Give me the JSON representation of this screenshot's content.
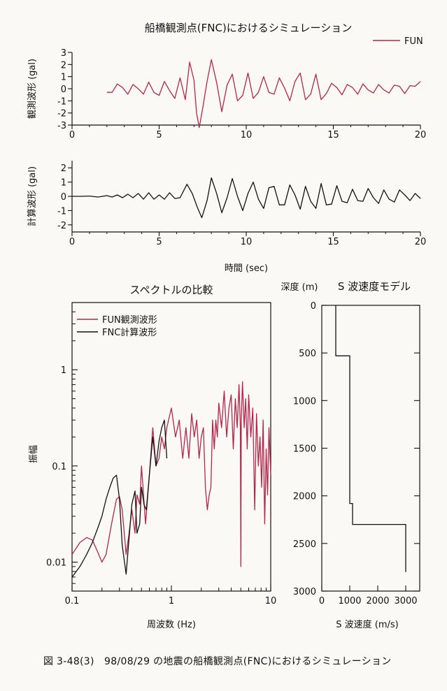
{
  "figure_title": "船橋観測点(FNC)におけるシミュレーション",
  "caption": "図 3-48(3)　98/08/29 の地震の船橋観測点(FNC)におけるシミュレーション",
  "colors": {
    "observed": "#b5264a",
    "computed": "#111111"
  },
  "chart_data": [
    {
      "type": "line",
      "title": "船橋観測点(FNC)におけるシミュレーション",
      "xlabel": "",
      "ylabel": "観測波形 (gal)",
      "xlim": [
        0,
        20
      ],
      "ylim": [
        -3,
        3
      ],
      "xticks": [
        "0",
        "5",
        "10",
        "15",
        "20"
      ],
      "yticks": [
        "3",
        "2",
        "1",
        "0",
        "-1",
        "-2",
        "-3"
      ],
      "legend": [
        "FUN"
      ],
      "legend_position": "top-right",
      "series": [
        {
          "name": "FUN",
          "color": "#b5264a",
          "x": [
            2.0,
            2.3,
            2.6,
            2.9,
            3.2,
            3.5,
            3.8,
            4.1,
            4.4,
            4.7,
            5.0,
            5.3,
            5.6,
            5.9,
            6.2,
            6.5,
            6.75,
            7.0,
            7.15,
            7.3,
            7.5,
            7.75,
            8.0,
            8.3,
            8.6,
            8.9,
            9.2,
            9.5,
            9.8,
            10.1,
            10.4,
            10.7,
            11.0,
            11.3,
            11.6,
            11.9,
            12.2,
            12.5,
            12.8,
            13.1,
            13.4,
            13.7,
            14.0,
            14.3,
            14.6,
            14.9,
            15.2,
            15.5,
            15.8,
            16.1,
            16.4,
            16.7,
            17.0,
            17.3,
            17.6,
            17.9,
            18.2,
            18.5,
            18.8,
            19.1,
            19.4,
            19.7,
            20.0
          ],
          "y": [
            -0.3,
            -0.3,
            0.4,
            0.1,
            -0.45,
            0.35,
            0.0,
            -0.45,
            0.55,
            -0.3,
            -0.55,
            0.6,
            -0.15,
            -0.8,
            0.9,
            -0.9,
            2.2,
            0.7,
            -2.0,
            -3.2,
            -1.6,
            0.6,
            2.4,
            0.5,
            -1.9,
            0.3,
            1.2,
            -1.0,
            -0.55,
            1.3,
            -0.8,
            -0.3,
            1.0,
            -0.3,
            -0.45,
            0.9,
            0.05,
            -1.0,
            0.6,
            1.3,
            -0.9,
            -0.45,
            1.2,
            -0.9,
            -0.4,
            0.45,
            0.1,
            -0.5,
            0.35,
            0.1,
            -0.45,
            0.4,
            -0.1,
            -0.35,
            0.35,
            -0.1,
            -0.35,
            0.3,
            0.2,
            -0.4,
            0.25,
            0.2,
            0.6
          ]
        }
      ]
    },
    {
      "type": "line",
      "xlabel": "時間 (sec)",
      "ylabel": "計算波形 (gal)",
      "xlim": [
        0,
        20
      ],
      "ylim": [
        -2.5,
        2.5
      ],
      "xticks": [
        "0",
        "5",
        "10",
        "15",
        "20"
      ],
      "yticks": [
        "2",
        "1",
        "0",
        "-1",
        "-2"
      ],
      "series": [
        {
          "color": "#111111",
          "x": [
            0.0,
            0.5,
            1.0,
            1.5,
            2.0,
            2.3,
            2.6,
            2.9,
            3.2,
            3.5,
            3.8,
            4.1,
            4.4,
            4.7,
            5.0,
            5.3,
            5.6,
            5.9,
            6.2,
            6.6,
            6.9,
            7.2,
            7.45,
            7.75,
            8.0,
            8.3,
            8.6,
            8.9,
            9.2,
            9.5,
            9.8,
            10.1,
            10.4,
            10.7,
            11.0,
            11.3,
            11.6,
            11.9,
            12.2,
            12.5,
            12.8,
            13.1,
            13.4,
            13.7,
            14.0,
            14.3,
            14.6,
            14.9,
            15.2,
            15.5,
            15.8,
            16.1,
            16.4,
            16.7,
            17.0,
            17.3,
            17.6,
            17.9,
            18.2,
            18.5,
            18.8,
            19.1,
            19.4,
            19.7,
            20.0
          ],
          "y": [
            0.0,
            0.0,
            0.02,
            -0.05,
            0.05,
            -0.05,
            0.1,
            -0.1,
            0.15,
            -0.1,
            0.2,
            -0.2,
            0.25,
            -0.2,
            0.1,
            -0.2,
            0.25,
            -0.15,
            -0.1,
            0.85,
            0.2,
            -0.8,
            -1.5,
            -0.3,
            1.3,
            0.2,
            -1.15,
            -0.1,
            1.25,
            0.0,
            -1.0,
            0.2,
            1.0,
            -0.2,
            -0.85,
            0.6,
            0.7,
            -0.6,
            -0.6,
            0.8,
            0.1,
            -0.9,
            0.7,
            -0.35,
            -0.85,
            0.9,
            -0.6,
            -0.55,
            0.75,
            -0.35,
            -0.45,
            0.5,
            -0.3,
            -0.35,
            0.55,
            -0.1,
            -0.5,
            0.45,
            -0.2,
            -0.4,
            0.45,
            0.1,
            -0.3,
            0.2,
            -0.15
          ]
        }
      ]
    },
    {
      "type": "line",
      "title": "スペクトルの比較",
      "xlabel": "周波数 (Hz)",
      "ylabel": "振幅",
      "xscale": "log",
      "yscale": "log",
      "xlim": [
        0.1,
        10
      ],
      "ylim": [
        0.005,
        5
      ],
      "xticks": [
        "0.1",
        "1",
        "10"
      ],
      "yticks": [
        "1",
        "0.1",
        "0.01"
      ],
      "legend": [
        "FUN観測波形",
        "FNC計算波形"
      ],
      "legend_position": "top-left",
      "series": [
        {
          "name": "FUN観測波形",
          "color": "#b5264a",
          "x": [
            0.1,
            0.12,
            0.14,
            0.16,
            0.18,
            0.2,
            0.22,
            0.25,
            0.28,
            0.3,
            0.32,
            0.35,
            0.37,
            0.4,
            0.43,
            0.45,
            0.48,
            0.5,
            0.55,
            0.6,
            0.65,
            0.7,
            0.75,
            0.8,
            0.85,
            0.9,
            1.0,
            1.1,
            1.2,
            1.3,
            1.4,
            1.5,
            1.6,
            1.7,
            1.8,
            1.9,
            2.0,
            2.1,
            2.2,
            2.3,
            2.4,
            2.5,
            2.6,
            2.7,
            2.8,
            2.9,
            3.0,
            3.2,
            3.4,
            3.6,
            3.8,
            4.0,
            4.2,
            4.4,
            4.6,
            4.8,
            4.95,
            5.0,
            5.05,
            5.2,
            5.4,
            5.6,
            5.8,
            6.0,
            6.3,
            6.6,
            6.9,
            7.2,
            7.5,
            7.8,
            8.1,
            8.4,
            8.7,
            9.0,
            9.3,
            9.6,
            10.0
          ],
          "y": [
            0.012,
            0.016,
            0.018,
            0.017,
            0.013,
            0.01,
            0.012,
            0.025,
            0.045,
            0.048,
            0.035,
            0.012,
            0.018,
            0.035,
            0.02,
            0.05,
            0.04,
            0.1,
            0.025,
            0.08,
            0.25,
            0.1,
            0.12,
            0.2,
            0.15,
            0.25,
            0.4,
            0.2,
            0.3,
            0.12,
            0.25,
            0.12,
            0.35,
            0.2,
            0.3,
            0.12,
            0.2,
            0.25,
            0.06,
            0.035,
            0.05,
            0.06,
            0.3,
            0.15,
            0.3,
            0.2,
            0.45,
            0.25,
            0.6,
            0.2,
            0.4,
            0.55,
            0.15,
            0.5,
            0.25,
            0.7,
            0.25,
            0.009,
            0.3,
            0.75,
            0.25,
            0.5,
            0.15,
            0.55,
            0.2,
            0.4,
            0.035,
            0.35,
            0.1,
            0.2,
            0.06,
            0.3,
            0.025,
            0.15,
            0.05,
            0.25,
            0.08
          ]
        },
        {
          "name": "FNC計算波形",
          "color": "#111111",
          "x": [
            0.1,
            0.12,
            0.14,
            0.16,
            0.18,
            0.2,
            0.22,
            0.24,
            0.26,
            0.28,
            0.3,
            0.32,
            0.35,
            0.37,
            0.4,
            0.43,
            0.45,
            0.48,
            0.5,
            0.53,
            0.56,
            0.6,
            0.65,
            0.7,
            0.75,
            0.8,
            0.85,
            0.9
          ],
          "y": [
            0.007,
            0.009,
            0.012,
            0.016,
            0.022,
            0.03,
            0.045,
            0.06,
            0.075,
            0.08,
            0.045,
            0.015,
            0.0075,
            0.015,
            0.04,
            0.055,
            0.02,
            0.025,
            0.06,
            0.04,
            0.035,
            0.08,
            0.2,
            0.1,
            0.18,
            0.25,
            0.3,
            0.12
          ]
        }
      ]
    },
    {
      "type": "line",
      "title": "S 波速度モデル",
      "xlabel": "S 波速度 (m/s)",
      "ylabel": "深度 (m)",
      "xlim": [
        0,
        3500
      ],
      "ylim": [
        3000,
        0
      ],
      "xticks": [
        "0",
        "1000",
        "2000",
        "3000"
      ],
      "yticks": [
        "0",
        "500",
        "1000",
        "1500",
        "2000",
        "2500",
        "3000"
      ],
      "series": [
        {
          "color": "#111111",
          "x": [
            500,
            500,
            1000,
            1000,
            1100,
            1100,
            3000,
            3000
          ],
          "y": [
            0,
            530,
            530,
            2080,
            2080,
            2300,
            2300,
            2800
          ]
        }
      ]
    }
  ]
}
